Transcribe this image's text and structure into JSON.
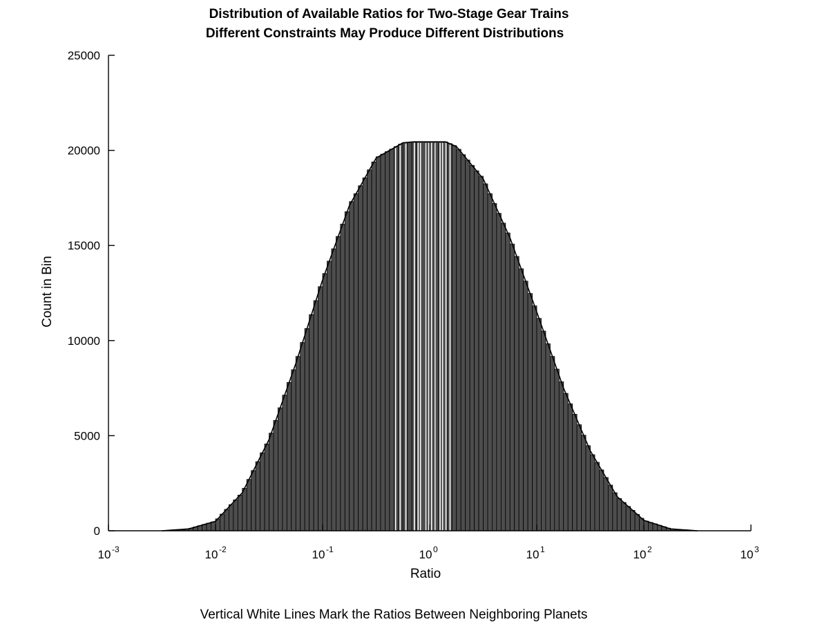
{
  "chart_data": {
    "type": "bar",
    "title": "Distribution of Available Ratios for Two-Stage Gear Trains",
    "subtitle": "Different Constraints May Produce Different Distributions",
    "xlabel": "Ratio",
    "ylabel": "Count in Bin",
    "caption": "Vertical White Lines Mark the Ratios Between Neighboring Planets",
    "x_scale": "log",
    "xlim": [
      0.001,
      1000
    ],
    "ylim": [
      0,
      25000
    ],
    "x_ticks": [
      {
        "base": "10",
        "exp": "-3"
      },
      {
        "base": "10",
        "exp": "-2"
      },
      {
        "base": "10",
        "exp": "-1"
      },
      {
        "base": "10",
        "exp": "0"
      },
      {
        "base": "10",
        "exp": "1"
      },
      {
        "base": "10",
        "exp": "2"
      },
      {
        "base": "10",
        "exp": "3"
      }
    ],
    "y_ticks": [
      "0",
      "5000",
      "10000",
      "15000",
      "20000",
      "25000"
    ],
    "grid": false,
    "bar_color": "#4d4d4d",
    "edge_color": "#000000",
    "marker_color": "#ffffff",
    "log_ratio": [
      -2.5,
      -2.25,
      -2.0,
      -1.75,
      -1.5,
      -1.25,
      -1.0,
      -0.75,
      -0.5,
      -0.25,
      -0.15,
      -0.1,
      0.0,
      0.1,
      0.15,
      0.25,
      0.5,
      0.75,
      1.0,
      1.25,
      1.5,
      1.75,
      2.0,
      2.25,
      2.5
    ],
    "counts": [
      0,
      100,
      500,
      2000,
      4800,
      8800,
      13200,
      17100,
      19600,
      20400,
      20450,
      20450,
      20450,
      20450,
      20450,
      20200,
      18500,
      15400,
      11500,
      7500,
      4200,
      1800,
      550,
      100,
      0
    ],
    "white_line_ratios": [
      0.48,
      0.53,
      0.6,
      0.72,
      0.78,
      0.82,
      0.92,
      0.98,
      1.04,
      1.12,
      1.25,
      1.32,
      1.42,
      1.55
    ]
  }
}
